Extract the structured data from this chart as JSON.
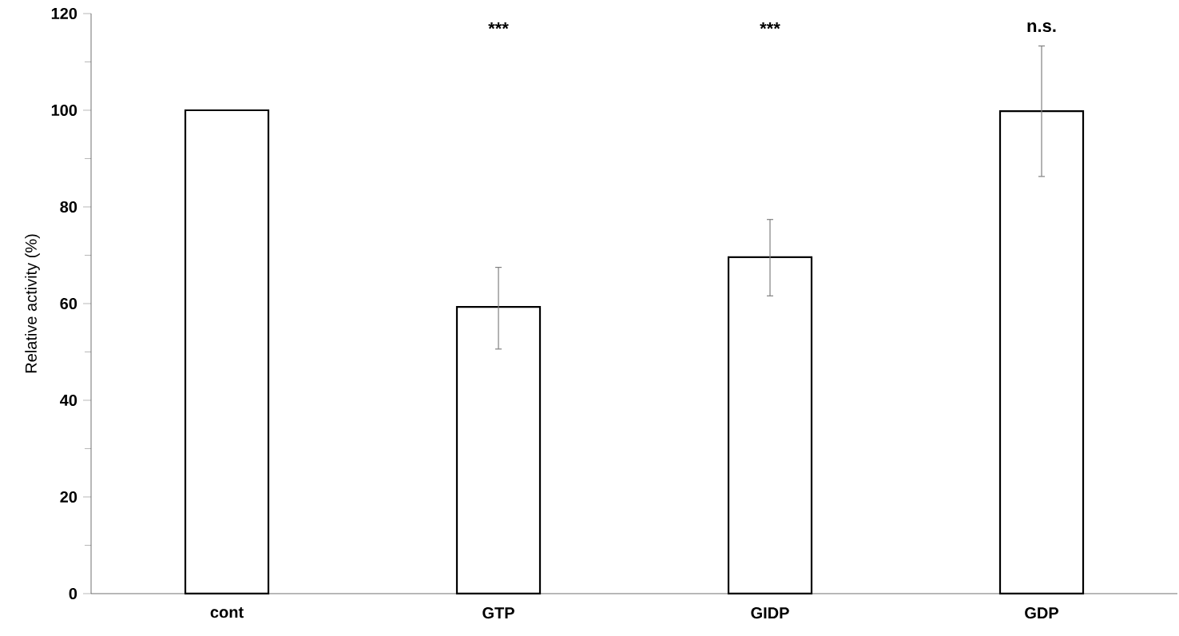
{
  "chart_data": {
    "type": "bar",
    "ylabel": "Relative activity (%)",
    "categories": [
      "cont",
      "GTP",
      "GIDP",
      "GDP"
    ],
    "values": [
      100,
      59.3,
      69.6,
      99.8
    ],
    "errors": [
      null,
      [
        50.6,
        67.5
      ],
      [
        61.6,
        77.4
      ],
      [
        86.3,
        113.3
      ]
    ],
    "color": "#ffffff",
    "ylim": [
      0,
      120
    ],
    "yticks": [
      0,
      20,
      40,
      60,
      80,
      100,
      120
    ],
    "annotations": [
      "***",
      "***",
      "n.s."
    ]
  }
}
